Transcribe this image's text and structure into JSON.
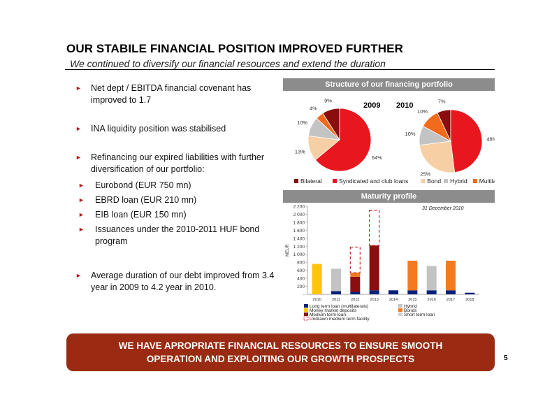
{
  "slide": {
    "title": "OUR STABILE FINANCIAL POSITION IMPROVED FURTHER",
    "subtitle": "We continued to diversify our financial resources and extend the duration",
    "page_number": "5"
  },
  "bullets": [
    "Net dept / EBITDA financial covenant has improved to 1.7",
    "INA liquidity position was stabilised",
    "Refinancing our expired liabilities with further diversification of our portfolio:",
    "Average duration of our debt improved from 3.4 year in 2009 to 4.2 year in 2010."
  ],
  "sub_bullets": [
    "Eurobond (EUR 750 mn)",
    "EBRD loan (EUR 210 mn)",
    "EIB loan (EUR 150 mn)",
    "Issuances under the 2010-2011 HUF bond program"
  ],
  "bullet_marker": "►",
  "banner": {
    "line1": "WE HAVE APROPRIATE FINANCIAL RESOURCES TO ENSURE SMOOTH",
    "line2": "OPERATION AND EXPLOITING OUR GROWTH PROSPECTS"
  },
  "colors": {
    "accent": "#9a2b12",
    "header_bar": "#8c8c8c",
    "bilateral": "#8b0d0d",
    "syndicated": "#e8171e",
    "bond": "#f7cfa4",
    "hybrid": "#c3c3c3",
    "multilaterals": "#f26a1b",
    "long_term_multilaterals": "#00207a",
    "money_market": "#ffc40c",
    "medium_term": "#8b0d0d",
    "bonds": "#f47a20",
    "short_term": "#d0d0d0",
    "undrawn": "#c82020"
  },
  "chart_data": [
    {
      "type": "pie",
      "title": "Structure of our financing portfolio",
      "year": "2009",
      "legend": [
        "Bilateral",
        "Syndicated and club loans",
        "Bond",
        "Hybrid",
        "Multilaterals"
      ],
      "slices": [
        {
          "name": "Bilateral",
          "value": 9,
          "label": "9%"
        },
        {
          "name": "Syndicated and club loans",
          "value": 64,
          "label": "64%"
        },
        {
          "name": "Bond",
          "value": 13,
          "label": "13%"
        },
        {
          "name": "Hybrid",
          "value": 10,
          "label": "10%"
        },
        {
          "name": "Multilaterals",
          "value": 4,
          "label": "4%"
        }
      ]
    },
    {
      "type": "pie",
      "year": "2010",
      "slices": [
        {
          "name": "Bilateral",
          "value": 7,
          "label": "7%"
        },
        {
          "name": "Syndicated and club loans",
          "value": 48,
          "label": "48%"
        },
        {
          "name": "Bond",
          "value": 25,
          "label": "25%"
        },
        {
          "name": "Hybrid",
          "value": 10,
          "label": "10%"
        },
        {
          "name": "Multilaterals",
          "value": 10,
          "label": "10%"
        }
      ]
    },
    {
      "type": "bar",
      "stacked": true,
      "title": "Maturity profile",
      "annotation": "31 December 2010",
      "ylabel": "MEUR",
      "ylim": [
        0,
        2200
      ],
      "yticks": [
        "-",
        "200",
        "400",
        "600",
        "800",
        "1 000",
        "1 200",
        "1 400",
        "1 600",
        "1 800",
        "2 000",
        "2 200"
      ],
      "categories": [
        "2010",
        "2011",
        "2012",
        "2013",
        "2014",
        "2015",
        "2016",
        "2017",
        "2018"
      ],
      "series": [
        {
          "name": "Long term loan (multilaterals)",
          "values": [
            0,
            80,
            60,
            100,
            100,
            100,
            100,
            100,
            40
          ]
        },
        {
          "name": "Money market deposits",
          "values": [
            760,
            0,
            0,
            0,
            0,
            0,
            0,
            0,
            0
          ]
        },
        {
          "name": "Medium term loan",
          "values": [
            0,
            0,
            380,
            1120,
            0,
            0,
            0,
            0,
            0
          ]
        },
        {
          "name": "Hybrid",
          "values": [
            0,
            560,
            0,
            0,
            0,
            0,
            610,
            0,
            0
          ]
        },
        {
          "name": "Bonds",
          "values": [
            0,
            0,
            100,
            0,
            0,
            740,
            0,
            740,
            0
          ]
        },
        {
          "name": "Short term loan",
          "values": [
            0,
            0,
            0,
            0,
            0,
            0,
            0,
            0,
            0
          ]
        },
        {
          "name": "Undrawn medium term facility",
          "values": [
            0,
            0,
            640,
            880,
            0,
            0,
            0,
            0,
            0
          ]
        }
      ],
      "legend_order": [
        "Long term loan (multilaterals)",
        "Hybrid",
        "Money market deposits",
        "Bonds",
        "Medium term loan",
        "Short term loan",
        "Undrawn medium term facility"
      ]
    }
  ]
}
